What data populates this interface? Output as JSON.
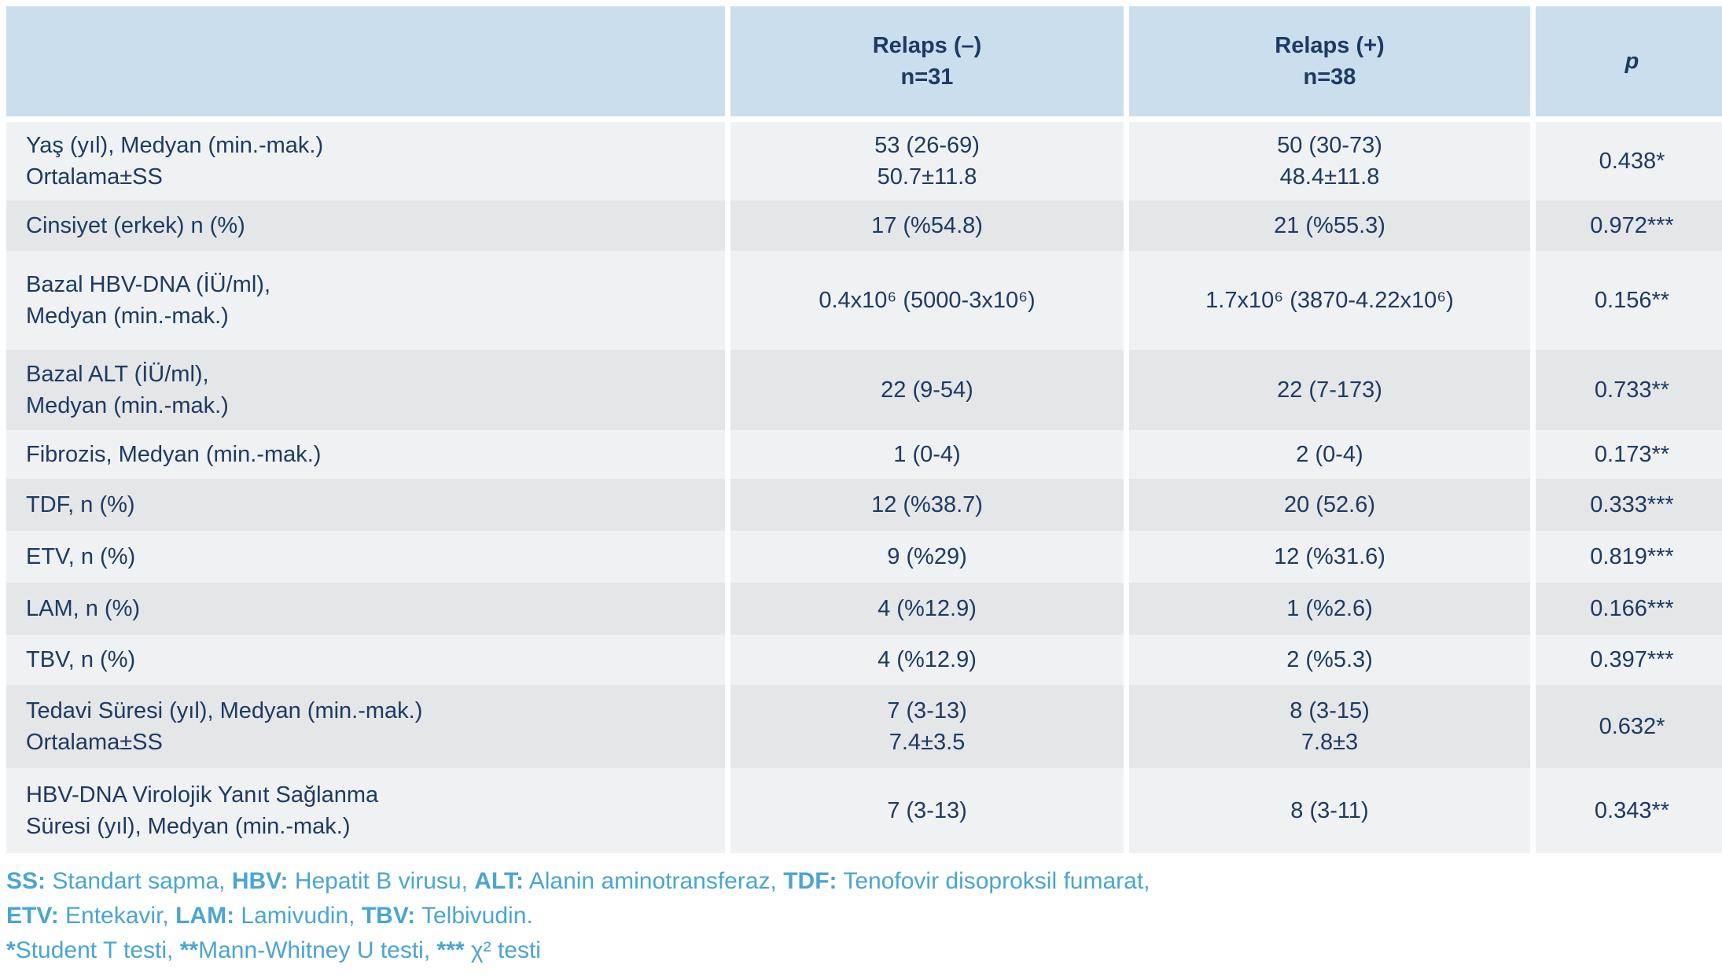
{
  "header": {
    "blank": "",
    "relaps_negative": "Relaps (–)\nn=31",
    "relaps_positive": "Relaps (+)\nn=38",
    "p": "p"
  },
  "rows": [
    {
      "label": "Yaş (yıl), Medyan (min.-mak.)\nOrtalama±SS",
      "neg": "53 (26-69)\n50.7±11.8",
      "pos": "50 (30-73)\n48.4±11.8",
      "p": "0.438*"
    },
    {
      "label": "Cinsiyet (erkek) n (%)",
      "neg": "17 (%54.8)",
      "pos": "21 (%55.3)",
      "p": "0.972***"
    },
    {
      "label": "Bazal HBV-DNA (İÜ/ml),\nMedyan (min.-mak.)",
      "neg": "0.4x10⁶ (5000-3x10⁶)",
      "pos": "1.7x10⁶ (3870-4.22x10⁶)",
      "p": "0.156**"
    },
    {
      "label": "Bazal ALT (İÜ/ml),\nMedyan (min.-mak.)",
      "neg": "22 (9-54)",
      "pos": "22 (7-173)",
      "p": "0.733**"
    },
    {
      "label": "Fibrozis, Medyan (min.-mak.)",
      "neg": "1 (0-4)",
      "pos": "2 (0-4)",
      "p": "0.173**"
    },
    {
      "label": "TDF, n (%)",
      "neg": "12 (%38.7)",
      "pos": "20 (52.6)",
      "p": "0.333***"
    },
    {
      "label": "ETV, n (%)",
      "neg": "9 (%29)",
      "pos": "12 (%31.6)",
      "p": "0.819***"
    },
    {
      "label": "LAM, n (%)",
      "neg": "4 (%12.9)",
      "pos": "1 (%2.6)",
      "p": "0.166***"
    },
    {
      "label": "TBV, n (%)",
      "neg": "4 (%12.9)",
      "pos": "2 (%5.3)",
      "p": "0.397***"
    },
    {
      "label": "Tedavi Süresi (yıl), Medyan (min.-mak.)\nOrtalama±SS",
      "neg": "7 (3-13)\n7.4±3.5",
      "pos": "8 (3-15)\n7.8±3",
      "p": "0.632*"
    },
    {
      "label": "HBV-DNA Virolojik Yanıt Sağlanma\nSüresi (yıl), Medyan (min.-mak.)",
      "neg": "7 (3-13)",
      "pos": "8 (3-11)",
      "p": "0.343**"
    }
  ],
  "footnotes": {
    "lines": [
      [
        {
          "text": "SS:",
          "bold": true
        },
        {
          "text": " Standart sapma, ",
          "bold": false
        },
        {
          "text": "HBV:",
          "bold": true
        },
        {
          "text": " Hepatit B virusu, ",
          "bold": false
        },
        {
          "text": "ALT:",
          "bold": true
        },
        {
          "text": " Alanin aminotransferaz, ",
          "bold": false
        },
        {
          "text": "TDF:",
          "bold": true
        },
        {
          "text": " Tenofovir disoproksil fumarat,",
          "bold": false
        }
      ],
      [
        {
          "text": "ETV:",
          "bold": true
        },
        {
          "text": " Entekavir, ",
          "bold": false
        },
        {
          "text": "LAM:",
          "bold": true
        },
        {
          "text": " Lamivudin, ",
          "bold": false
        },
        {
          "text": "TBV:",
          "bold": true
        },
        {
          "text": " Telbivudin.",
          "bold": false
        }
      ],
      [
        {
          "text": "*",
          "bold": true
        },
        {
          "text": "Student T testi, ",
          "bold": false
        },
        {
          "text": "**",
          "bold": true
        },
        {
          "text": "Mann-Whitney U testi, ",
          "bold": false
        },
        {
          "text": "***",
          "bold": true
        },
        {
          "text": " χ² testi",
          "bold": false
        }
      ]
    ]
  },
  "colors": {
    "header_bg": "#cbdeed",
    "row_light": "#f0f1f2",
    "row_dark": "#e5e6e8",
    "text_navy": "#1d3a63",
    "footnote_blue": "#4aa5d1"
  }
}
